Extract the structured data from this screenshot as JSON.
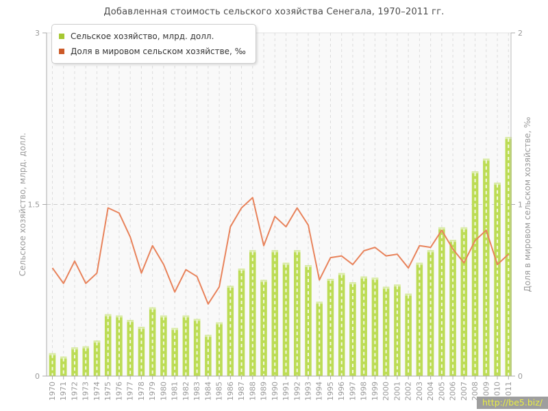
{
  "title": "Добавленная стоимость сельского хозяйства Сенегала, 1970–2011 гг.",
  "legend": {
    "items": [
      {
        "label": "Сельское хозяйство, млрд. долл.",
        "swatch_color": "#a6c832"
      },
      {
        "label": "Доля в мировом сельском хозяйстве, ‰",
        "swatch_color": "#cc5a28"
      }
    ]
  },
  "watermark": {
    "text": "http://be5.biz/"
  },
  "chart_data": {
    "type": "bar",
    "title": "Добавленная стоимость сельского хозяйства Сенегала, 1970–2011 гг.",
    "categories": [
      "1970",
      "1971",
      "1972",
      "1973",
      "1974",
      "1975",
      "1976",
      "1977",
      "1978",
      "1979",
      "1980",
      "1981",
      "1982",
      "1983",
      "1984",
      "1985",
      "1986",
      "1987",
      "1988",
      "1989",
      "1990",
      "1991",
      "1992",
      "1993",
      "1994",
      "1995",
      "1996",
      "1997",
      "1998",
      "1999",
      "2000",
      "2001",
      "2002",
      "2003",
      "2004",
      "2005",
      "2006",
      "2007",
      "2008",
      "2009",
      "2010",
      "2011"
    ],
    "series": [
      {
        "name": "Сельское хозяйство, млрд. долл.",
        "type": "bar",
        "axis": "left",
        "color": "#bcdc55",
        "cap_color": "#d9eba6",
        "values": [
          0.2,
          0.17,
          0.25,
          0.26,
          0.31,
          0.54,
          0.53,
          0.49,
          0.43,
          0.6,
          0.53,
          0.42,
          0.53,
          0.5,
          0.36,
          0.47,
          0.79,
          0.94,
          1.1,
          0.84,
          1.1,
          0.99,
          1.1,
          0.97,
          0.65,
          0.85,
          0.9,
          0.82,
          0.87,
          0.86,
          0.78,
          0.8,
          0.72,
          0.99,
          1.1,
          1.3,
          1.19,
          1.3,
          1.79,
          1.9,
          1.69,
          2.09
        ]
      },
      {
        "name": "Доля в мировом сельском хозяйстве, ‰",
        "type": "line",
        "axis": "right",
        "color": "#e8825a",
        "values": [
          0.63,
          0.54,
          0.67,
          0.54,
          0.6,
          0.98,
          0.95,
          0.81,
          0.6,
          0.76,
          0.65,
          0.49,
          0.62,
          0.58,
          0.42,
          0.52,
          0.87,
          0.98,
          1.04,
          0.76,
          0.93,
          0.87,
          0.98,
          0.88,
          0.56,
          0.69,
          0.7,
          0.65,
          0.73,
          0.75,
          0.7,
          0.71,
          0.63,
          0.76,
          0.75,
          0.85,
          0.74,
          0.66,
          0.79,
          0.85,
          0.65,
          0.71
        ]
      }
    ],
    "axes": {
      "left": {
        "title": "Сельское хозяйство, млрд. долл.",
        "min": 0,
        "max": 3,
        "ticks": [
          0,
          1.5,
          3
        ],
        "tick_labels": [
          "0",
          "1.5",
          "3"
        ]
      },
      "right": {
        "title": "Доля в мировом сельском хозяйстве, ‰",
        "min": 0,
        "max": 2,
        "ticks": [
          0,
          1,
          2
        ],
        "tick_labels": [
          "0",
          "1",
          "2"
        ]
      }
    },
    "grid": {
      "vertical_per_category": true,
      "horizontal_left_value": 1.5,
      "legend_position": "top-left"
    }
  },
  "style": {
    "plot_bg": "#f9f9f9",
    "plot_border": "#e2e2e2",
    "axis_line": "#aaaaaa",
    "grid_v": "#dcdcdc",
    "grid_h": "#cccccc",
    "tick_text": "#999999",
    "axis_title_text": "#9a9a9a",
    "bar_center_dash": "rgba(255,255,255,0.85)"
  }
}
